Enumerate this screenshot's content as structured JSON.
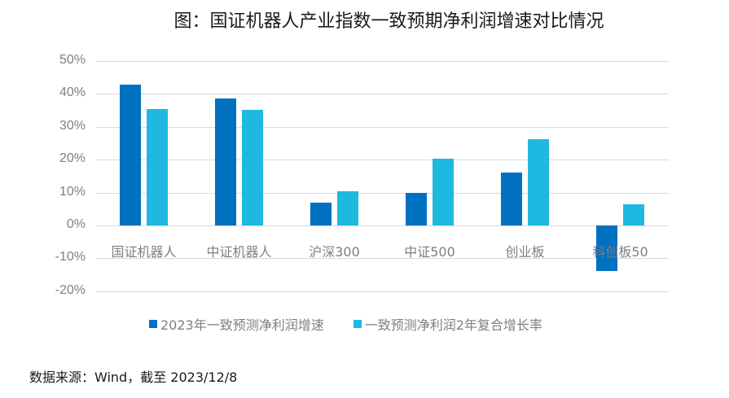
{
  "title": "图：国证机器人产业指数一致预期净利润增速对比情况",
  "source": "数据来源：Wind，截至 2023/12/8",
  "colors": {
    "series1": "#0070C0",
    "series2": "#1FB8E0",
    "grid": "#D9D9D9",
    "axis_text": "#7F7F7F"
  },
  "chart_data": {
    "type": "bar",
    "title": "图：国证机器人产业指数一致预期净利润增速对比情况",
    "xlabel": "",
    "ylabel": "",
    "categories": [
      "国证机器人",
      "中证机器人",
      "沪深300",
      "中证500",
      "创业板",
      "科创板50"
    ],
    "series": [
      {
        "name": "2023年一致预测净利润增速",
        "color": "#0070C0",
        "values": [
          42.9,
          38.5,
          6.9,
          10.0,
          16.1,
          -13.8
        ]
      },
      {
        "name": "一致预测净利润2年复合增长率",
        "color": "#1FB8E0",
        "values": [
          35.5,
          35.2,
          10.4,
          20.2,
          26.3,
          6.5
        ]
      }
    ],
    "ylim": [
      -20,
      50
    ],
    "yticks": [
      "50%",
      "40%",
      "30%",
      "20%",
      "10%",
      "0%",
      "-10%",
      "-20%"
    ],
    "grid": true,
    "legend_position": "bottom"
  },
  "legend": [
    {
      "label": "2023年一致预测净利润增速"
    },
    {
      "label": "一致预测净利润2年复合增长率"
    }
  ]
}
